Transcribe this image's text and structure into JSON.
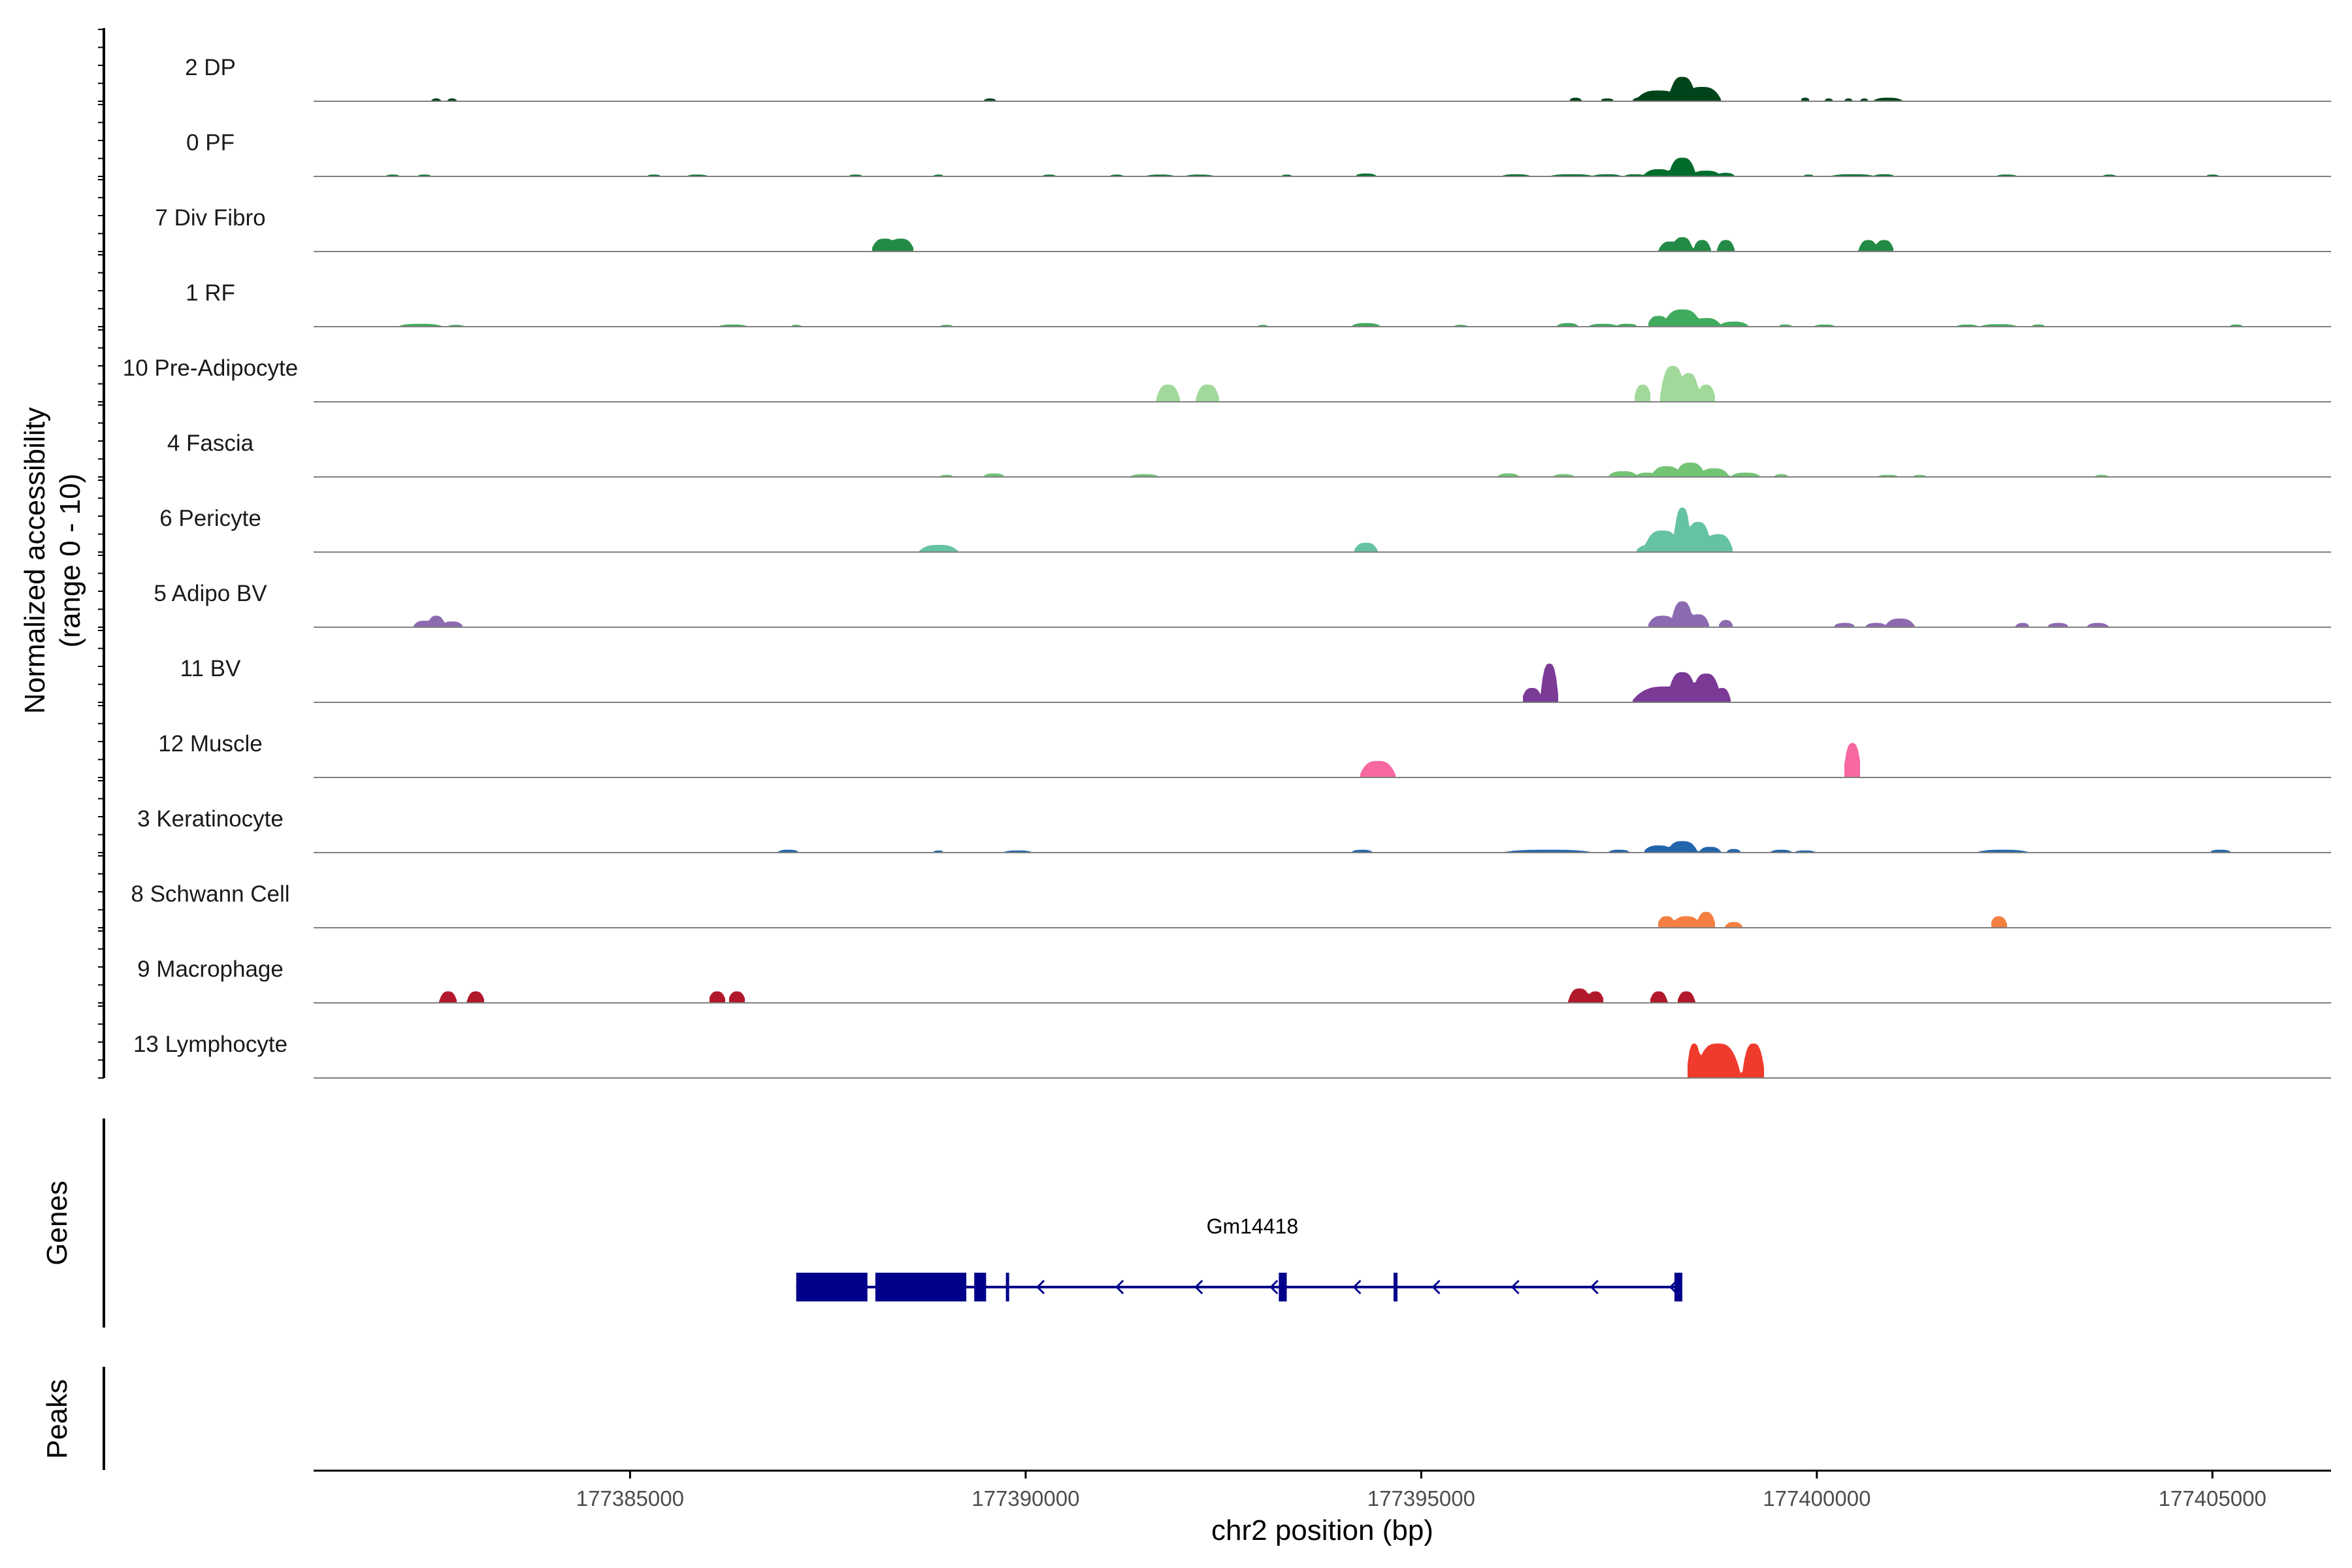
{
  "chart_data": {
    "type": "area",
    "title": "",
    "chromosome": "chr2",
    "xlabel": "chr2 position (bp)",
    "ylabel_line1": "Normalized accessibility",
    "ylabel_line2": "(range 0 - 10)",
    "xlim": [
      177381000,
      177406500
    ],
    "ylim": [
      0,
      10
    ],
    "xticks": [
      177385000,
      177390000,
      177395000,
      177400000,
      177405000
    ],
    "xtick_labels": [
      "177385000",
      "177390000",
      "177395000",
      "177400000",
      "177405000"
    ],
    "tracks": [
      {
        "name": "2 DP",
        "color": "#00441b",
        "peaks": [
          [
            177382550,
            0.4,
            70
          ],
          [
            177382750,
            0.4,
            70
          ],
          [
            177389550,
            0.4,
            90
          ],
          [
            177396950,
            0.5,
            90
          ],
          [
            177397350,
            0.4,
            100
          ],
          [
            177397750,
            0.5,
            90
          ],
          [
            177398000,
            1.5,
            300
          ],
          [
            177398300,
            3.4,
            180
          ],
          [
            177398550,
            2.0,
            250
          ],
          [
            177398100,
            1.2,
            150
          ],
          [
            177399850,
            0.5,
            70
          ],
          [
            177400150,
            0.4,
            60
          ],
          [
            177400400,
            0.4,
            60
          ],
          [
            177400600,
            0.4,
            60
          ],
          [
            177400900,
            0.5,
            200
          ]
        ]
      },
      {
        "name": "0 PF",
        "color": "#006d2c",
        "peaks": [
          [
            177382000,
            0.25,
            100
          ],
          [
            177382400,
            0.25,
            100
          ],
          [
            177385300,
            0.25,
            100
          ],
          [
            177385850,
            0.25,
            150
          ],
          [
            177387850,
            0.25,
            100
          ],
          [
            177388900,
            0.25,
            80
          ],
          [
            177390300,
            0.25,
            100
          ],
          [
            177391150,
            0.25,
            100
          ],
          [
            177391700,
            0.25,
            200
          ],
          [
            177392200,
            0.25,
            200
          ],
          [
            177393300,
            0.25,
            80
          ],
          [
            177394300,
            0.4,
            150
          ],
          [
            177396200,
            0.3,
            200
          ],
          [
            177396900,
            0.3,
            300
          ],
          [
            177397350,
            0.3,
            200
          ],
          [
            177397700,
            0.3,
            150
          ],
          [
            177398000,
            1.0,
            200
          ],
          [
            177398300,
            2.6,
            180
          ],
          [
            177398600,
            0.8,
            200
          ],
          [
            177398850,
            0.5,
            120
          ],
          [
            177399900,
            0.25,
            80
          ],
          [
            177400450,
            0.3,
            300
          ],
          [
            177400850,
            0.3,
            150
          ],
          [
            177402400,
            0.25,
            150
          ],
          [
            177403700,
            0.25,
            100
          ],
          [
            177405000,
            0.25,
            100
          ]
        ]
      },
      {
        "name": "7 Div Fibro",
        "color": "#238b45",
        "peaks": [
          [
            177388220,
            1.8,
            180
          ],
          [
            177388420,
            1.8,
            180
          ],
          [
            177398150,
            1.4,
            160
          ],
          [
            177398300,
            2.0,
            140
          ],
          [
            177398550,
            1.6,
            120
          ],
          [
            177398850,
            1.6,
            120
          ],
          [
            177400650,
            1.6,
            130
          ],
          [
            177400850,
            1.6,
            130
          ]
        ]
      },
      {
        "name": "1 RF",
        "color": "#41ab5d",
        "peaks": [
          [
            177382350,
            0.4,
            300
          ],
          [
            177382800,
            0.25,
            120
          ],
          [
            177386300,
            0.3,
            200
          ],
          [
            177387100,
            0.25,
            80
          ],
          [
            177389000,
            0.25,
            100
          ],
          [
            177393000,
            0.25,
            80
          ],
          [
            177394300,
            0.5,
            200
          ],
          [
            177395500,
            0.25,
            100
          ],
          [
            177396850,
            0.5,
            150
          ],
          [
            177397300,
            0.4,
            200
          ],
          [
            177397600,
            0.4,
            150
          ],
          [
            177398000,
            1.5,
            150
          ],
          [
            177398300,
            2.4,
            250
          ],
          [
            177398600,
            1.2,
            200
          ],
          [
            177398950,
            0.7,
            200
          ],
          [
            177399600,
            0.3,
            100
          ],
          [
            177400100,
            0.3,
            150
          ],
          [
            177401900,
            0.3,
            150
          ],
          [
            177402300,
            0.35,
            250
          ],
          [
            177402800,
            0.3,
            100
          ],
          [
            177405300,
            0.3,
            100
          ]
        ]
      },
      {
        "name": "10 Pre-Adipocyte",
        "color": "#a1d99b",
        "peaks": [
          [
            177391800,
            2.4,
            160
          ],
          [
            177392300,
            2.4,
            160
          ],
          [
            177397800,
            2.4,
            120
          ],
          [
            177398180,
            5.0,
            170
          ],
          [
            177398380,
            4.0,
            150
          ],
          [
            177398600,
            2.4,
            130
          ]
        ]
      },
      {
        "name": "4 Fascia",
        "color": "#74c476",
        "peaks": [
          [
            177389000,
            0.3,
            100
          ],
          [
            177389600,
            0.5,
            150
          ],
          [
            177391500,
            0.4,
            200
          ],
          [
            177396100,
            0.5,
            150
          ],
          [
            177396800,
            0.4,
            150
          ],
          [
            177397550,
            0.8,
            200
          ],
          [
            177397850,
            0.6,
            150
          ],
          [
            177398100,
            1.5,
            200
          ],
          [
            177398400,
            2.0,
            200
          ],
          [
            177398700,
            1.2,
            200
          ],
          [
            177399100,
            0.6,
            200
          ],
          [
            177399550,
            0.4,
            100
          ],
          [
            177400900,
            0.3,
            150
          ],
          [
            177401300,
            0.3,
            100
          ],
          [
            177403600,
            0.3,
            100
          ]
        ]
      },
      {
        "name": "6 Pericyte",
        "color": "#66c2a4",
        "peaks": [
          [
            177388900,
            1.0,
            260
          ],
          [
            177394300,
            1.3,
            160
          ],
          [
            177397900,
            1.0,
            200
          ],
          [
            177398050,
            3.0,
            250
          ],
          [
            177398300,
            6.2,
            120
          ],
          [
            177398500,
            4.2,
            180
          ],
          [
            177398750,
            2.5,
            200
          ]
        ]
      },
      {
        "name": "5 Adipo BV",
        "color": "#8c6bb1",
        "peaks": [
          [
            177382400,
            0.9,
            150
          ],
          [
            177382550,
            1.6,
            120
          ],
          [
            177382750,
            0.8,
            150
          ],
          [
            177398050,
            1.6,
            200
          ],
          [
            177398300,
            3.6,
            150
          ],
          [
            177398500,
            1.8,
            150
          ],
          [
            177398850,
            1.0,
            100
          ],
          [
            177400350,
            0.6,
            150
          ],
          [
            177400750,
            0.6,
            150
          ],
          [
            177401050,
            1.2,
            200
          ],
          [
            177402600,
            0.6,
            100
          ],
          [
            177403050,
            0.6,
            150
          ],
          [
            177403550,
            0.6,
            150
          ]
        ]
      },
      {
        "name": "11 BV",
        "color": "#7a3a96",
        "peaks": [
          [
            177396400,
            2.0,
            140
          ],
          [
            177396620,
            5.4,
            120
          ],
          [
            177398100,
            2.2,
            450
          ],
          [
            177398300,
            4.2,
            200
          ],
          [
            177398600,
            4.0,
            200
          ],
          [
            177398800,
            2.0,
            120
          ]
        ]
      },
      {
        "name": "12 Muscle",
        "color": "#f768a1",
        "peaks": [
          [
            177394450,
            2.3,
            240
          ],
          [
            177400450,
            4.8,
            120
          ]
        ]
      },
      {
        "name": "3 Keratinocyte",
        "color": "#2166ac",
        "peaks": [
          [
            177387000,
            0.4,
            150
          ],
          [
            177388900,
            0.3,
            80
          ],
          [
            177389900,
            0.3,
            200
          ],
          [
            177394250,
            0.4,
            150
          ],
          [
            177396600,
            0.4,
            600
          ],
          [
            177397500,
            0.4,
            150
          ],
          [
            177398000,
            1.0,
            200
          ],
          [
            177398300,
            1.6,
            200
          ],
          [
            177398650,
            0.8,
            150
          ],
          [
            177398950,
            0.5,
            100
          ],
          [
            177399550,
            0.4,
            150
          ],
          [
            177399850,
            0.3,
            150
          ],
          [
            177402350,
            0.4,
            350
          ],
          [
            177405100,
            0.4,
            150
          ]
        ]
      },
      {
        "name": "8 Schwann Cell",
        "color": "#f47f41",
        "peaks": [
          [
            177398100,
            1.6,
            130
          ],
          [
            177398350,
            1.6,
            200
          ],
          [
            177398600,
            2.2,
            130
          ],
          [
            177398950,
            0.8,
            120
          ],
          [
            177402300,
            1.6,
            120
          ]
        ]
      },
      {
        "name": "9 Macrophage",
        "color": "#b2182b",
        "peaks": [
          [
            177382700,
            1.6,
            120
          ],
          [
            177383050,
            1.6,
            120
          ],
          [
            177386100,
            1.6,
            120
          ],
          [
            177386350,
            1.6,
            120
          ],
          [
            177397000,
            2.0,
            150
          ],
          [
            177397200,
            1.6,
            120
          ],
          [
            177398000,
            1.6,
            120
          ],
          [
            177398350,
            1.6,
            120
          ]
        ]
      },
      {
        "name": "13 Lymphocyte",
        "color": "#ef3b2c",
        "peaks": [
          [
            177398450,
            4.8,
            100
          ],
          [
            177398750,
            4.8,
            300
          ],
          [
            177399200,
            4.8,
            150
          ]
        ]
      }
    ],
    "genes_panel_label": "Genes",
    "peaks_panel_label": "Peaks",
    "gene": {
      "name": "Gm14418",
      "strand": "-",
      "start": 177387100,
      "end": 177398300,
      "exons": [
        [
          177387100,
          177388000
        ],
        [
          177388100,
          177389250
        ],
        [
          177389350,
          177389500
        ],
        [
          177389750,
          177389790
        ],
        [
          177393200,
          177393300
        ],
        [
          177394650,
          177394700
        ],
        [
          177398200,
          177398300
        ]
      ]
    },
    "colors": {
      "axis": "#000000",
      "baseline": "#808080",
      "gene": "#00008b",
      "tick_label": "#4d4d4d"
    }
  }
}
